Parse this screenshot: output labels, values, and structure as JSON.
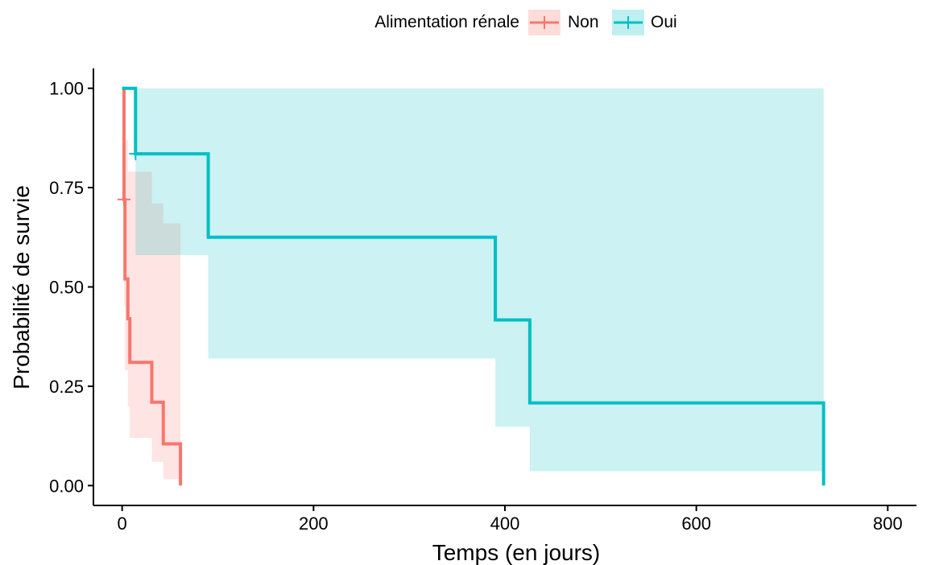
{
  "chart_data": {
    "type": "line",
    "subtype": "kaplan-meier-step",
    "xlabel": "Temps (en jours)",
    "ylabel": "Probabilité de survie",
    "xlim": [
      -30,
      830
    ],
    "ylim": [
      -0.05,
      1.05
    ],
    "x_ticks": [
      0,
      200,
      400,
      600,
      800
    ],
    "x_tick_labels": [
      "0",
      "200",
      "400",
      "600",
      "800"
    ],
    "y_ticks": [
      0,
      0.25,
      0.5,
      0.75,
      1
    ],
    "y_tick_labels": [
      "0.00",
      "0.25",
      "0.50",
      "0.75",
      "1.00"
    ],
    "grid": false,
    "legend": {
      "title": "Alimentation rénale",
      "position": "top",
      "entries": [
        "Non",
        "Oui"
      ]
    },
    "series": [
      {
        "name": "Non",
        "color": "#F8766D",
        "steps": [
          [
            0,
            1.0
          ],
          [
            2,
            0.72
          ],
          [
            3,
            0.52
          ],
          [
            6,
            0.42
          ],
          [
            8,
            0.31
          ],
          [
            31,
            0.21
          ],
          [
            43,
            0.105
          ],
          [
            61,
            0.0
          ]
        ],
        "ci_lower": [
          [
            0,
            1.0
          ],
          [
            2,
            0.45
          ],
          [
            3,
            0.29
          ],
          [
            6,
            0.2
          ],
          [
            8,
            0.12
          ],
          [
            31,
            0.06
          ],
          [
            43,
            0.016
          ],
          [
            61,
            0.016
          ]
        ],
        "ci_upper": [
          [
            0,
            1.0
          ],
          [
            2,
            0.96
          ],
          [
            3,
            0.87
          ],
          [
            6,
            0.79
          ],
          [
            31,
            0.71
          ],
          [
            43,
            0.66
          ],
          [
            61,
            0.66
          ]
        ],
        "censored": [
          [
            2,
            0.72
          ]
        ]
      },
      {
        "name": "Oui",
        "color": "#00BFC4",
        "steps": [
          [
            0,
            1.0
          ],
          [
            14,
            0.835
          ],
          [
            90,
            0.625
          ],
          [
            390,
            0.417
          ],
          [
            426,
            0.208
          ],
          [
            733,
            0.0
          ]
        ],
        "ci_lower": [
          [
            0,
            1.0
          ],
          [
            14,
            0.58
          ],
          [
            90,
            0.32
          ],
          [
            390,
            0.148
          ],
          [
            426,
            0.036
          ],
          [
            733,
            0.036
          ]
        ],
        "ci_upper": [
          [
            0,
            1.0
          ],
          [
            733,
            1.0
          ]
        ],
        "censored": [
          [
            14,
            0.835
          ]
        ]
      }
    ]
  }
}
